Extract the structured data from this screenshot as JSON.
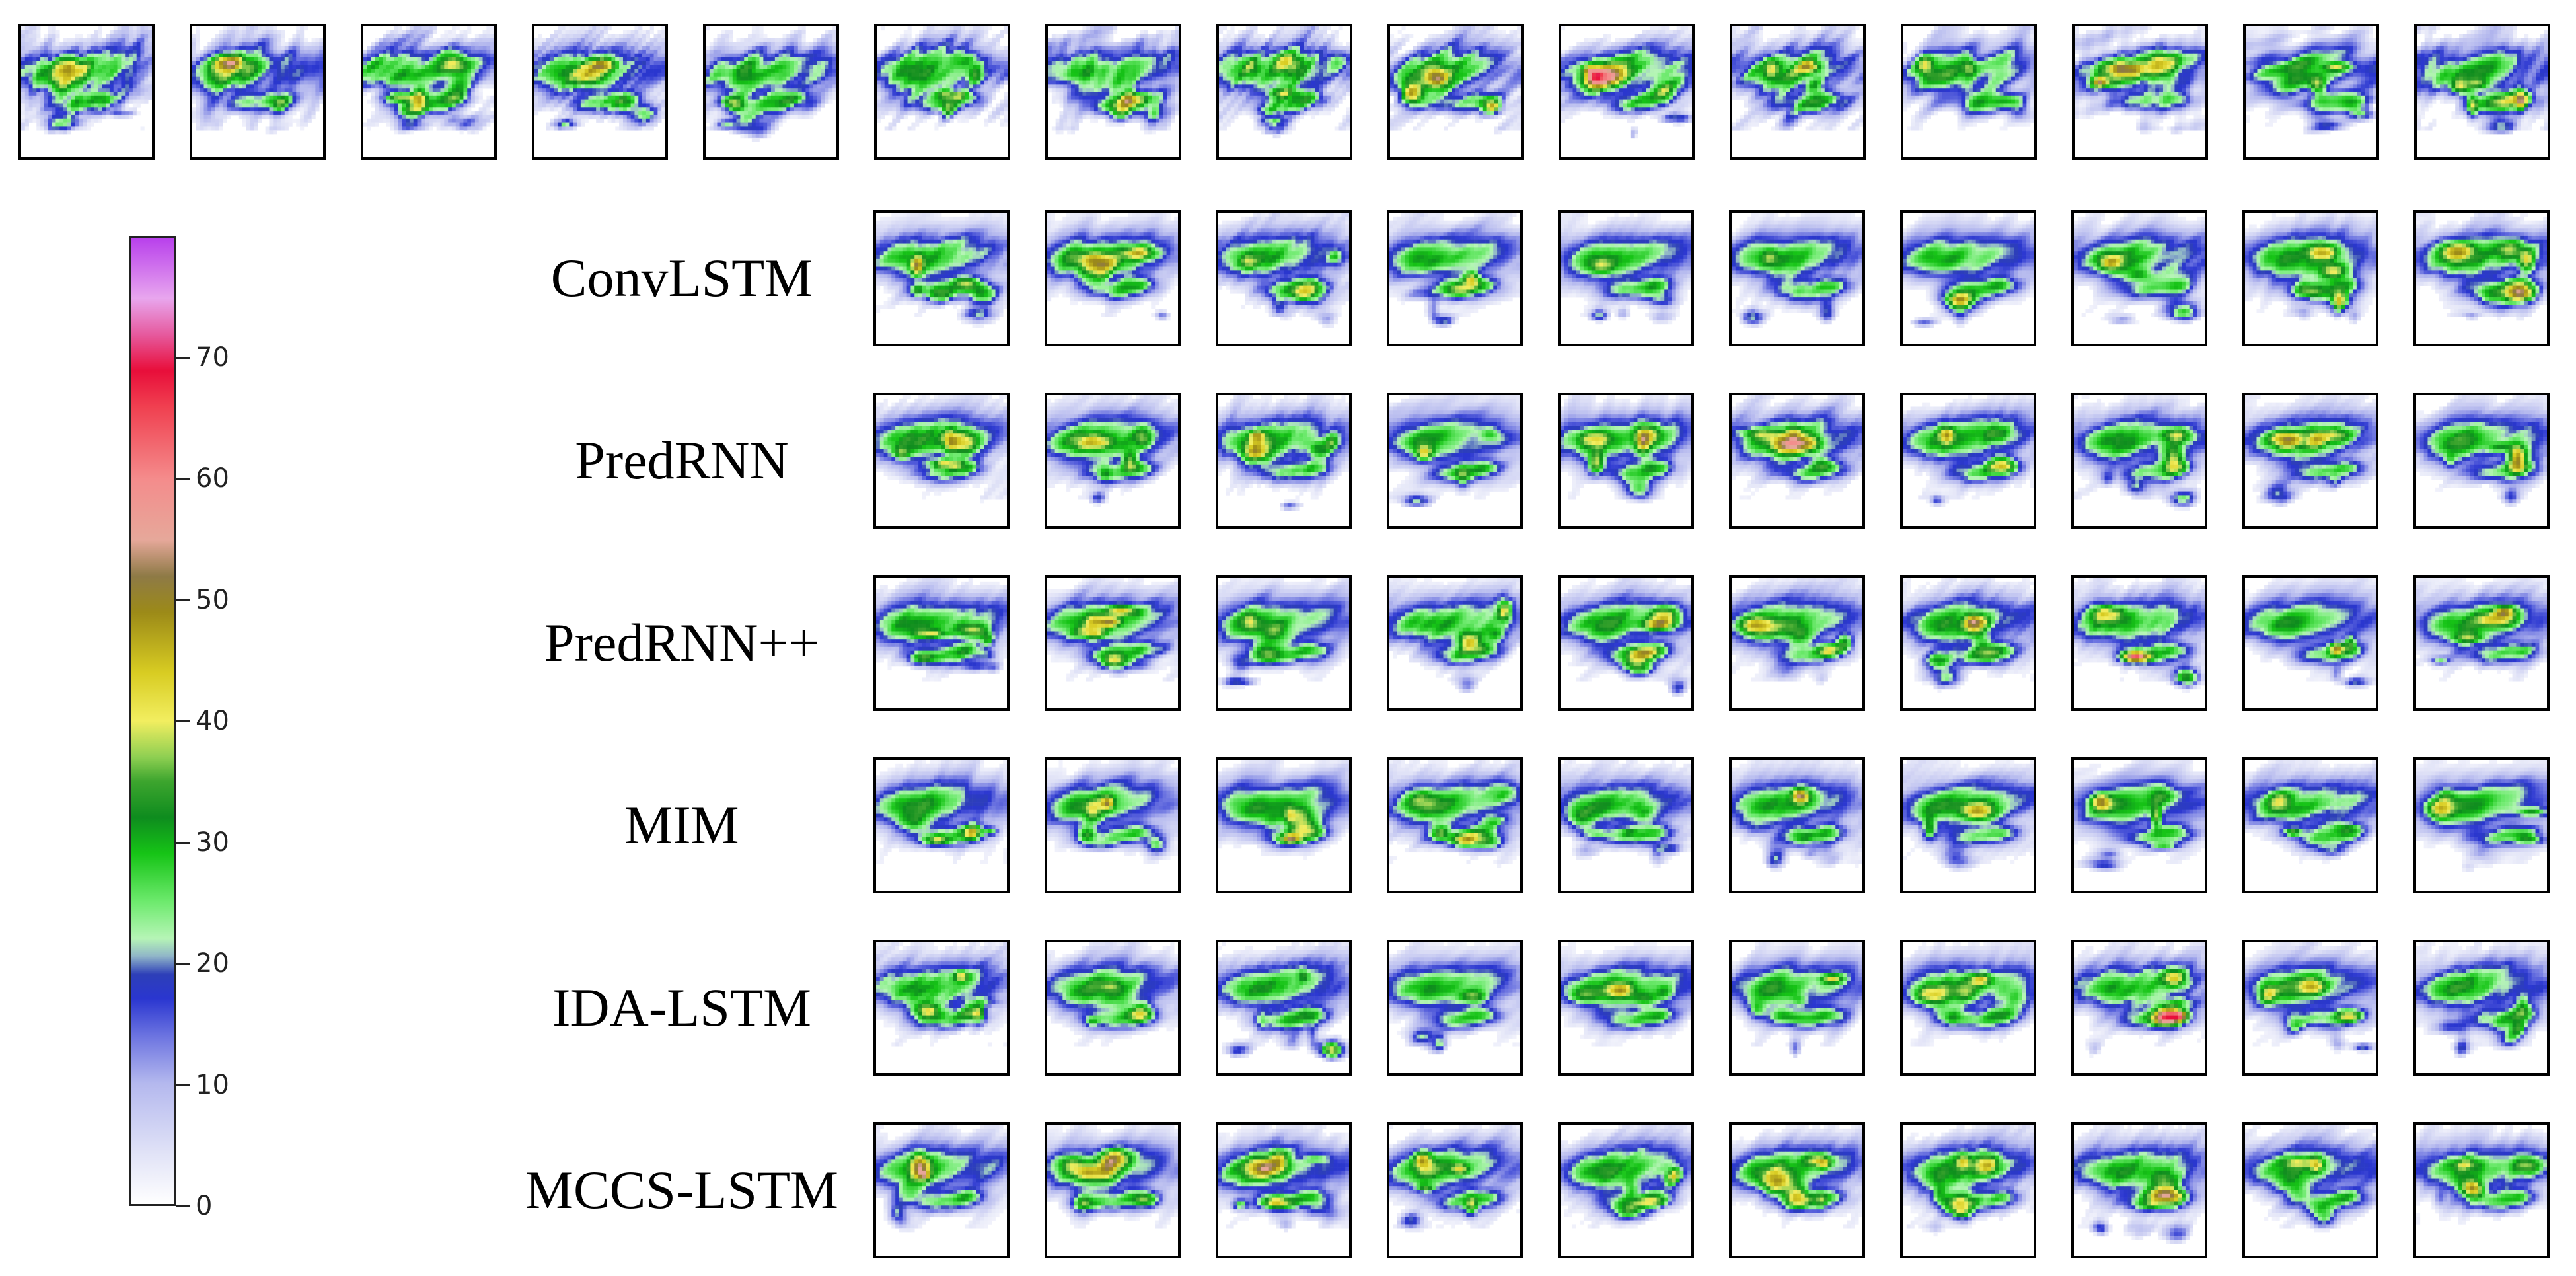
{
  "colorbar": {
    "min": 0,
    "max": 80,
    "ticks": [
      "0",
      "10",
      "20",
      "30",
      "40",
      "50",
      "60",
      "70"
    ],
    "palette": [
      {
        "v": 0,
        "c": "#ffffff"
      },
      {
        "v": 4,
        "c": "#e2e4f7"
      },
      {
        "v": 10,
        "c": "#b4b8ee"
      },
      {
        "v": 14,
        "c": "#6a72e0"
      },
      {
        "v": 17,
        "c": "#2a36d0"
      },
      {
        "v": 19,
        "c": "#2d3fb8"
      },
      {
        "v": 20.5,
        "c": "#8fb4c8"
      },
      {
        "v": 22,
        "c": "#b6f5b6"
      },
      {
        "v": 25,
        "c": "#6eea6e"
      },
      {
        "v": 29,
        "c": "#16c416"
      },
      {
        "v": 32,
        "c": "#0e8c1e"
      },
      {
        "v": 35,
        "c": "#3da52e"
      },
      {
        "v": 37,
        "c": "#8ecf52"
      },
      {
        "v": 40,
        "c": "#f2ee60"
      },
      {
        "v": 44,
        "c": "#d8cc22"
      },
      {
        "v": 49,
        "c": "#9c8a18"
      },
      {
        "v": 52,
        "c": "#8e7a46"
      },
      {
        "v": 55,
        "c": "#e6a89a"
      },
      {
        "v": 60,
        "c": "#f48c8c"
      },
      {
        "v": 66,
        "c": "#f04050"
      },
      {
        "v": 69,
        "c": "#e80e3a"
      },
      {
        "v": 72,
        "c": "#e65a9e"
      },
      {
        "v": 75,
        "c": "#e8a6ee"
      },
      {
        "v": 80,
        "c": "#b840ec"
      }
    ]
  },
  "ground_truth_frames": 15,
  "models": [
    {
      "name": "ConvLSTM"
    },
    {
      "name": "PredRNN"
    },
    {
      "name": "PredRNN++"
    },
    {
      "name": "MIM"
    },
    {
      "name": "IDA-LSTM"
    },
    {
      "name": "MCCS-LSTM"
    }
  ],
  "frames_per_model": 10
}
